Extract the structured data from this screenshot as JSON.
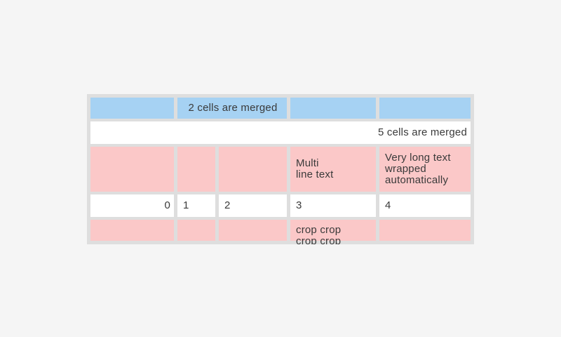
{
  "colors": {
    "page_background": "#f5f5f5",
    "table_grid": "#dedede",
    "header_blue": "#a6d2f3",
    "cell_pink": "#fbc8c8",
    "cell_white": "#ffffff",
    "text": "#3a3a3a"
  },
  "table": {
    "row_header": {
      "merged_label": "2 cells are merged"
    },
    "row_full_merge": {
      "label": "5 cells are merged"
    },
    "row_tall": {
      "multiline_cell": "Multi\nline text",
      "wrapped_cell": "Very long text\nwrapped\nautomatically"
    },
    "row_numbers": {
      "c1": "0",
      "c2": "1",
      "c3": "2",
      "c4": "3",
      "c5": "4"
    },
    "row_cropped": {
      "cropped_cell": "crop crop\ncrop crop"
    }
  }
}
